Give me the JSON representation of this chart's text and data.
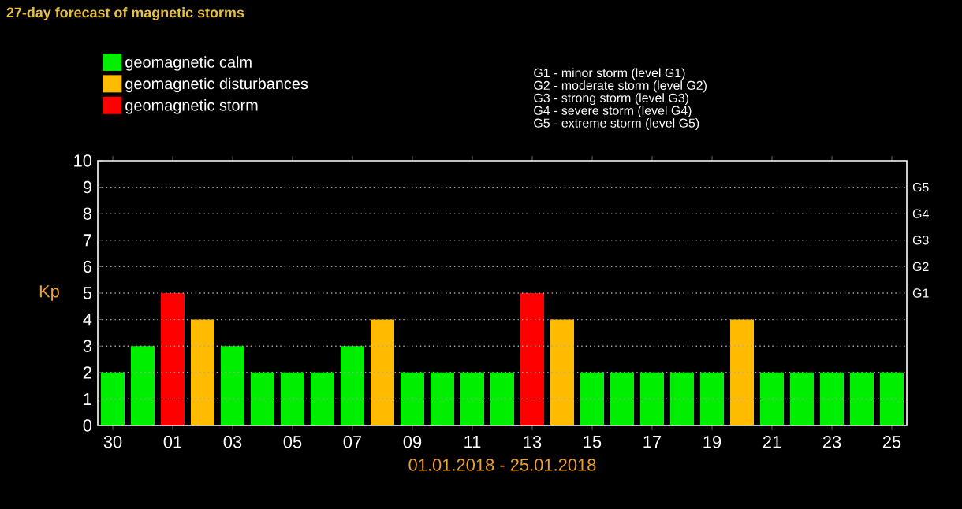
{
  "chart_data": {
    "type": "bar",
    "title": "27-day forecast of magnetic storms",
    "xlabel": "01.01.2018 - 25.01.2018",
    "ylabel": "Kp",
    "categories": [
      "30",
      null,
      "01",
      null,
      "03",
      null,
      "05",
      null,
      "07",
      null,
      "09",
      null,
      "11",
      null,
      "13",
      null,
      "15",
      null,
      "17",
      null,
      "19",
      null,
      "21",
      null,
      "23",
      null,
      "25"
    ],
    "series": [
      {
        "name": "geomagnetic calm",
        "color": "#00ee00",
        "values": [
          2,
          3,
          null,
          null,
          3,
          2,
          2,
          2,
          3,
          null,
          2,
          2,
          2,
          2,
          null,
          null,
          2,
          2,
          2,
          2,
          2,
          null,
          2,
          2,
          2,
          2,
          2
        ]
      },
      {
        "name": "geomagnetic disturbances",
        "color": "#ffbb00",
        "values": [
          null,
          null,
          null,
          4,
          null,
          null,
          null,
          null,
          null,
          4,
          null,
          null,
          null,
          null,
          null,
          4,
          null,
          null,
          null,
          null,
          null,
          4,
          null,
          null,
          null,
          null,
          null
        ]
      },
      {
        "name": "geomagnetic storm",
        "color": "#ff0000",
        "values": [
          null,
          null,
          5,
          null,
          null,
          null,
          null,
          null,
          null,
          null,
          null,
          null,
          null,
          null,
          5,
          null,
          null,
          null,
          null,
          null,
          null,
          null,
          null,
          null,
          null,
          null,
          null
        ]
      }
    ],
    "ylim": [
      0,
      10
    ],
    "yticks": [
      0,
      1,
      2,
      3,
      4,
      5,
      6,
      7,
      8,
      9,
      10
    ],
    "grid": "y",
    "legend": "top left",
    "annotations": [
      "G5",
      "G4",
      "G3",
      "G2",
      "G1",
      "G1 - minor storm (level G1)",
      "G2 - moderate storm (level G2)",
      "G3 - strong storm (level G3)",
      "G4 - severe storm (level G4)",
      "G5 - extreme storm (level G5)"
    ]
  }
}
